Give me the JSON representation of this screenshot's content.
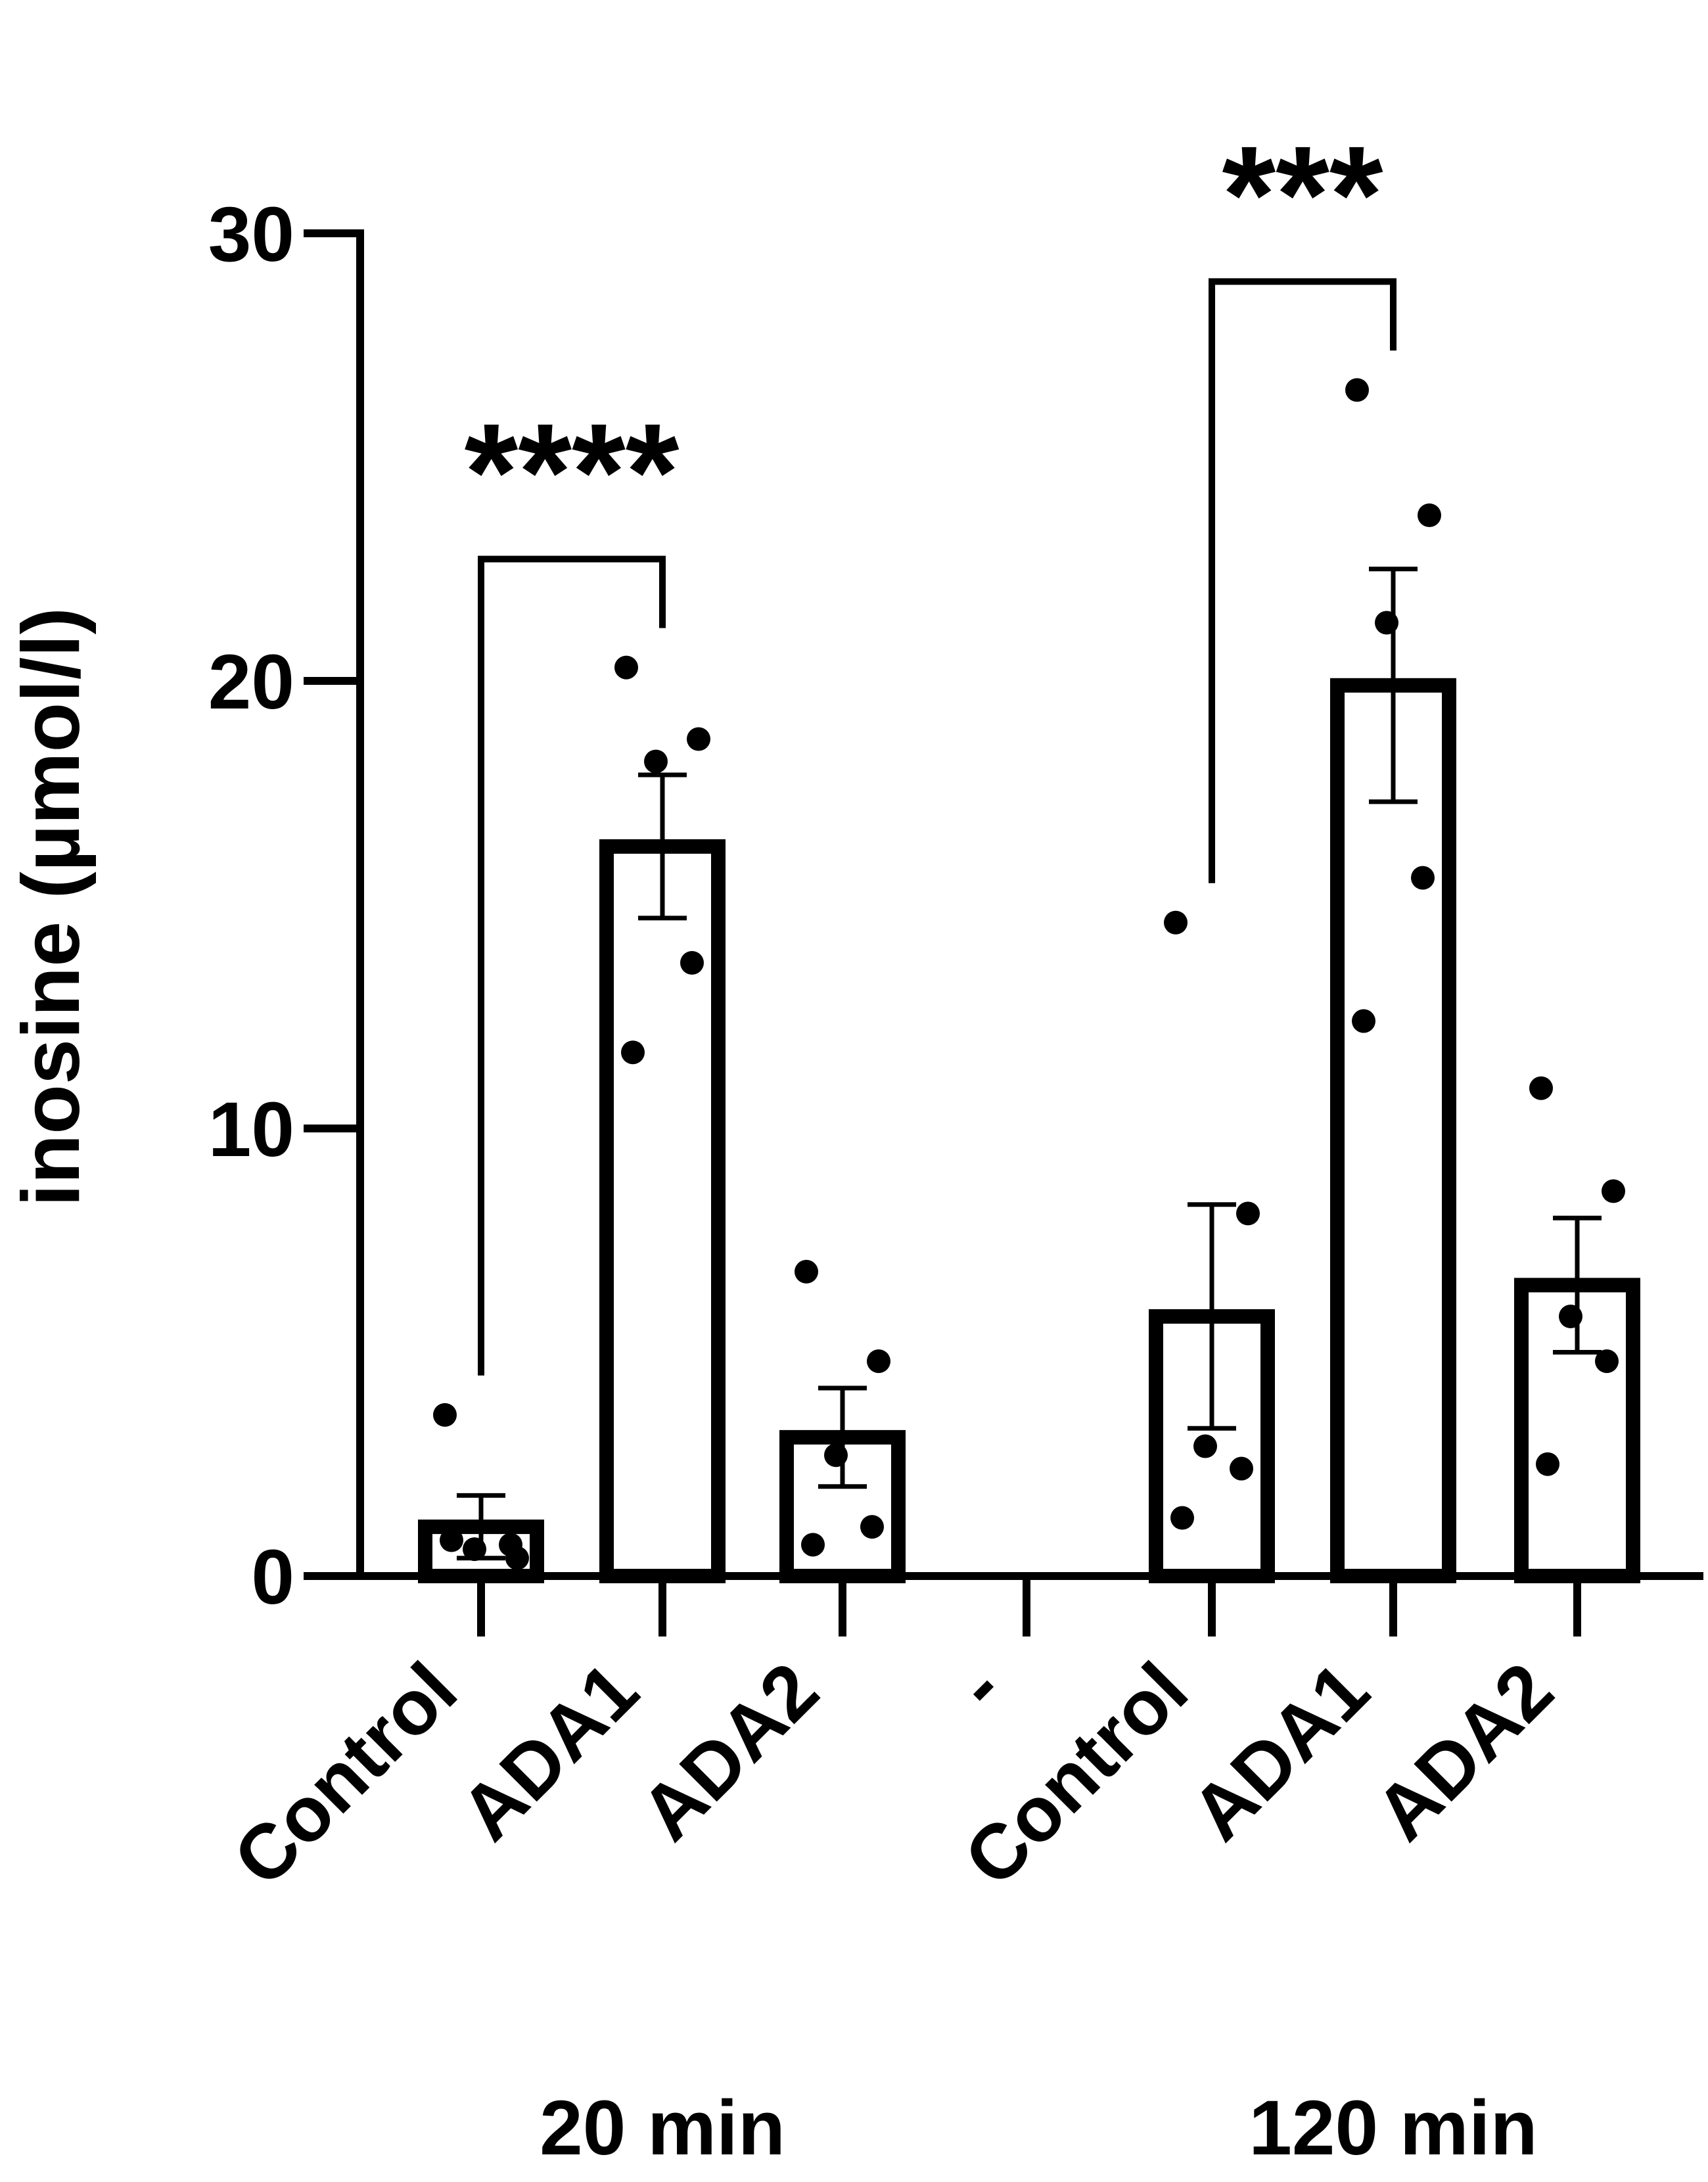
{
  "chart_data": {
    "type": "bar",
    "title": "",
    "xlabel": "",
    "ylabel": "inosine (µmol/l)",
    "ylim": [
      0,
      30
    ],
    "yticks": [
      "0",
      "10",
      "20",
      "30"
    ],
    "categories": [
      "Control",
      "ADA1",
      "ADA2",
      "-",
      "Control",
      "ADA1",
      "ADA2"
    ],
    "groups": [
      {
        "label": "20 min",
        "categories": [
          "Control",
          "ADA1",
          "ADA2"
        ]
      },
      {
        "label": "120 min",
        "categories": [
          "Control",
          "ADA1",
          "ADA2"
        ]
      }
    ],
    "values": [
      1.1,
      16.3,
      3.1,
      null,
      5.8,
      19.9,
      6.5
    ],
    "error": [
      0.7,
      1.6,
      1.1,
      null,
      2.5,
      2.6,
      1.5
    ],
    "points": [
      [
        3.6,
        0.4,
        0.6,
        0.7,
        0.8
      ],
      [
        20.3,
        18.7,
        18.2,
        13.7,
        11.7
      ],
      [
        6.8,
        4.8,
        2.7,
        1.1,
        0.7
      ],
      [],
      [
        14.6,
        8.1,
        2.9,
        2.4,
        1.3
      ],
      [
        26.5,
        23.7,
        21.3,
        15.6,
        12.4
      ],
      [
        10.9,
        8.6,
        5.8,
        4.8,
        2.5
      ]
    ],
    "significance": [
      {
        "from": 0,
        "to": 1,
        "label": "****"
      },
      {
        "from": 4,
        "to": 5,
        "label": "***"
      }
    ],
    "grid": false,
    "legend": "none",
    "colors": {
      "bar_fill": "#ffffff",
      "bar_stroke": "#000000",
      "points": "#000000"
    }
  }
}
